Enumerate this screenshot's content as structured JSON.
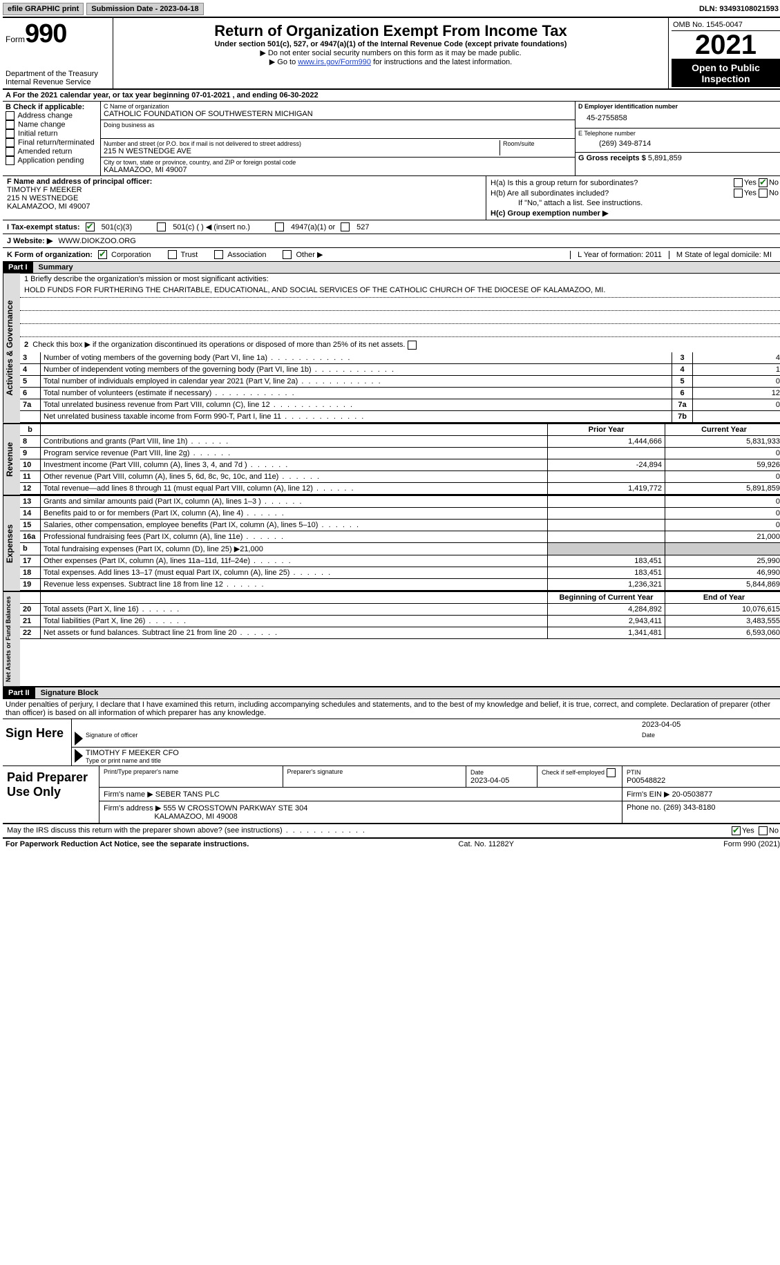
{
  "top": {
    "efile": "efile GRAPHIC print",
    "sub_label": "Submission Date - 2023-04-18",
    "dln": "DLN: 93493108021593"
  },
  "header": {
    "form_word": "Form",
    "form_num": "990",
    "title": "Return of Organization Exempt From Income Tax",
    "sub1": "Under section 501(c), 527, or 4947(a)(1) of the Internal Revenue Code (except private foundations)",
    "sub2": "Do not enter social security numbers on this form as it may be made public.",
    "sub3_pre": "Go to ",
    "sub3_link": "www.irs.gov/Form990",
    "sub3_post": " for instructions and the latest information.",
    "dept": "Department of the Treasury",
    "irs": "Internal Revenue Service",
    "omb": "OMB No. 1545-0047",
    "year": "2021",
    "open": "Open to Public Inspection"
  },
  "rowA": "A For the 2021 calendar year, or tax year beginning 07-01-2021   , and ending 06-30-2022",
  "colB": {
    "hdr": "B Check if applicable:",
    "items": [
      "Address change",
      "Name change",
      "Initial return",
      "Final return/terminated",
      "Amended return",
      "Application pending"
    ]
  },
  "colC": {
    "name_lbl": "C Name of organization",
    "name": "CATHOLIC FOUNDATION OF SOUTHWESTERN MICHIGAN",
    "dba_lbl": "Doing business as",
    "addr_lbl": "Number and street (or P.O. box if mail is not delivered to street address)",
    "room_lbl": "Room/suite",
    "addr": "215 N WESTNEDGE AVE",
    "city_lbl": "City or town, state or province, country, and ZIP or foreign postal code",
    "city": "KALAMAZOO, MI  49007"
  },
  "colD": {
    "ein_lbl": "D Employer identification number",
    "ein": "45-2755858",
    "phone_lbl": "E Telephone number",
    "phone": "(269) 349-8714",
    "gross_lbl": "G Gross receipts $",
    "gross": "5,891,859"
  },
  "rowF": {
    "f_lbl": "F Name and address of principal officer:",
    "f_name": "TIMOTHY F MEEKER",
    "f_addr1": "215 N WESTNEDGE",
    "f_addr2": "KALAMAZOO, MI  49007",
    "ha": "H(a)  Is this a group return for subordinates?",
    "hb": "H(b)  Are all subordinates included?",
    "hb_note": "If \"No,\" attach a list. See instructions.",
    "hc": "H(c)  Group exemption number ▶",
    "yes": "Yes",
    "no": "No"
  },
  "rowI": {
    "lbl": "I   Tax-exempt status:",
    "opt1": "501(c)(3)",
    "opt2": "501(c) (  ) ◀ (insert no.)",
    "opt3": "4947(a)(1) or",
    "opt4": "527"
  },
  "rowJ": {
    "lbl": "J   Website: ▶",
    "val": "WWW.DIOKZOO.ORG"
  },
  "rowK": {
    "lbl": "K Form of organization:",
    "opts": [
      "Corporation",
      "Trust",
      "Association",
      "Other ▶"
    ],
    "l_lbl": "L Year of formation: 2011",
    "m_lbl": "M State of legal domicile: MI"
  },
  "part1": {
    "hdr": "Part I",
    "title": "Summary"
  },
  "mission": {
    "lbl": "1   Briefly describe the organization's mission or most significant activities:",
    "text": "HOLD FUNDS FOR FURTHERING THE CHARITABLE, EDUCATIONAL, AND SOCIAL SERVICES OF THE CATHOLIC CHURCH OF THE DIOCESE OF KALAMAZOO, MI."
  },
  "line2": "Check this box ▶      if the organization discontinued its operations or disposed of more than 25% of its net assets.",
  "gov_lines": [
    {
      "n": "3",
      "t": "Number of voting members of the governing body (Part VI, line 1a)",
      "b": "3",
      "v": "4"
    },
    {
      "n": "4",
      "t": "Number of independent voting members of the governing body (Part VI, line 1b)",
      "b": "4",
      "v": "1"
    },
    {
      "n": "5",
      "t": "Total number of individuals employed in calendar year 2021 (Part V, line 2a)",
      "b": "5",
      "v": "0"
    },
    {
      "n": "6",
      "t": "Total number of volunteers (estimate if necessary)",
      "b": "6",
      "v": "12"
    },
    {
      "n": "7a",
      "t": "Total unrelated business revenue from Part VIII, column (C), line 12",
      "b": "7a",
      "v": "0"
    },
    {
      "n": "",
      "t": "Net unrelated business taxable income from Form 990-T, Part I, line 11",
      "b": "7b",
      "v": ""
    }
  ],
  "yr_hdr": {
    "a": "b",
    "prior": "Prior Year",
    "curr": "Current Year"
  },
  "revenue": [
    {
      "n": "8",
      "t": "Contributions and grants (Part VIII, line 1h)",
      "p": "1,444,666",
      "c": "5,831,933"
    },
    {
      "n": "9",
      "t": "Program service revenue (Part VIII, line 2g)",
      "p": "",
      "c": "0"
    },
    {
      "n": "10",
      "t": "Investment income (Part VIII, column (A), lines 3, 4, and 7d )",
      "p": "-24,894",
      "c": "59,926"
    },
    {
      "n": "11",
      "t": "Other revenue (Part VIII, column (A), lines 5, 6d, 8c, 9c, 10c, and 11e)",
      "p": "",
      "c": "0"
    },
    {
      "n": "12",
      "t": "Total revenue—add lines 8 through 11 (must equal Part VIII, column (A), line 12)",
      "p": "1,419,772",
      "c": "5,891,859"
    }
  ],
  "expenses": [
    {
      "n": "13",
      "t": "Grants and similar amounts paid (Part IX, column (A), lines 1–3 )",
      "p": "",
      "c": "0"
    },
    {
      "n": "14",
      "t": "Benefits paid to or for members (Part IX, column (A), line 4)",
      "p": "",
      "c": "0"
    },
    {
      "n": "15",
      "t": "Salaries, other compensation, employee benefits (Part IX, column (A), lines 5–10)",
      "p": "",
      "c": "0"
    },
    {
      "n": "16a",
      "t": "Professional fundraising fees (Part IX, column (A), line 11e)",
      "p": "",
      "c": "21,000"
    },
    {
      "n": "b",
      "t": "Total fundraising expenses (Part IX, column (D), line 25) ▶21,000",
      "p": "shade",
      "c": "shade"
    },
    {
      "n": "17",
      "t": "Other expenses (Part IX, column (A), lines 11a–11d, 11f–24e)",
      "p": "183,451",
      "c": "25,990"
    },
    {
      "n": "18",
      "t": "Total expenses. Add lines 13–17 (must equal Part IX, column (A), line 25)",
      "p": "183,451",
      "c": "46,990"
    },
    {
      "n": "19",
      "t": "Revenue less expenses. Subtract line 18 from line 12",
      "p": "1,236,321",
      "c": "5,844,869"
    }
  ],
  "net_hdr": {
    "p": "Beginning of Current Year",
    "c": "End of Year"
  },
  "net": [
    {
      "n": "20",
      "t": "Total assets (Part X, line 16)",
      "p": "4,284,892",
      "c": "10,076,615"
    },
    {
      "n": "21",
      "t": "Total liabilities (Part X, line 26)",
      "p": "2,943,411",
      "c": "3,483,555"
    },
    {
      "n": "22",
      "t": "Net assets or fund balances. Subtract line 21 from line 20",
      "p": "1,341,481",
      "c": "6,593,060"
    }
  ],
  "vtabs": {
    "gov": "Activities & Governance",
    "rev": "Revenue",
    "exp": "Expenses",
    "net": "Net Assets or Fund Balances"
  },
  "part2": {
    "hdr": "Part II",
    "title": "Signature Block"
  },
  "penalty": "Under penalties of perjury, I declare that I have examined this return, including accompanying schedules and statements, and to the best of my knowledge and belief, it is true, correct, and complete. Declaration of preparer (other than officer) is based on all information of which preparer has any knowledge.",
  "sign": {
    "here": "Sign Here",
    "sig_lbl": "Signature of officer",
    "date": "2023-04-05",
    "date_lbl": "Date",
    "name": "TIMOTHY F MEEKER  CFO",
    "name_lbl": "Type or print name and title"
  },
  "prep": {
    "hdr": "Paid Preparer Use Only",
    "c1": "Print/Type preparer's name",
    "c2": "Preparer's signature",
    "c3_lbl": "Date",
    "c3": "2023-04-05",
    "c4": "Check        if self-employed",
    "c5_lbl": "PTIN",
    "c5": "P00548822",
    "firm_lbl": "Firm's name     ▶",
    "firm": "SEBER TANS PLC",
    "ein_lbl": "Firm's EIN ▶",
    "ein": "20-0503877",
    "addr_lbl": "Firm's address ▶",
    "addr1": "555 W CROSSTOWN PARKWAY STE 304",
    "addr2": "KALAMAZOO, MI  49008",
    "phone_lbl": "Phone no.",
    "phone": "(269) 343-8180"
  },
  "may": "May the IRS discuss this return with the preparer shown above? (see instructions)",
  "footer": {
    "l": "For Paperwork Reduction Act Notice, see the separate instructions.",
    "m": "Cat. No. 11282Y",
    "r": "Form 990 (2021)"
  }
}
